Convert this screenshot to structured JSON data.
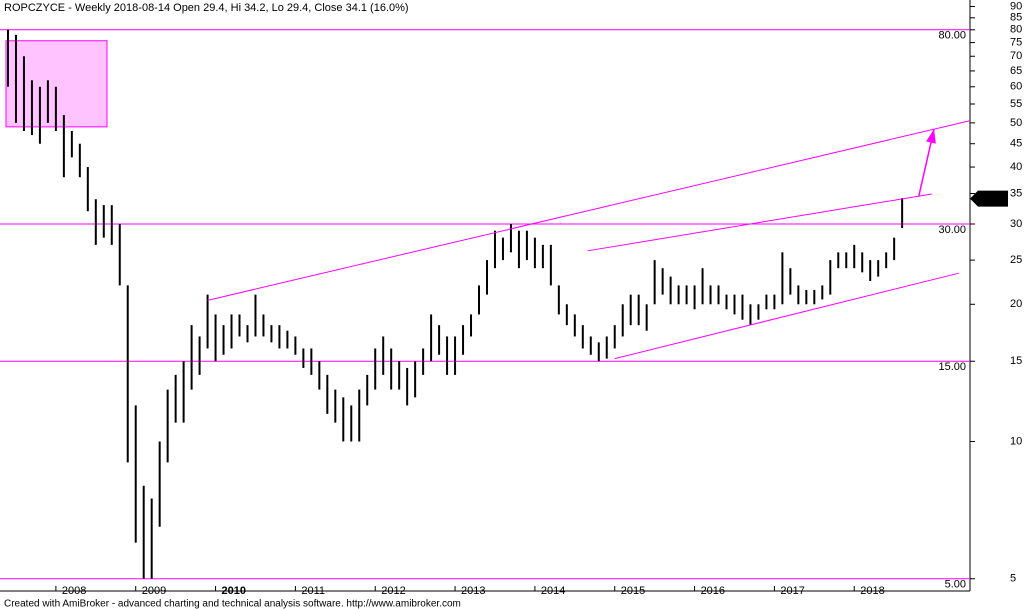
{
  "chart_data": {
    "type": "ohlc",
    "title": "ROPCZYCE - Weekly 2018-08-14 Open 29.4, Hi 34.2, Lo 29.4, Close 34.1 (16.0%)",
    "footer": "Created with AmiBroker - advanced charting and technical analysis software. http://www.amibroker.com",
    "log_scale": true,
    "color": "#000000",
    "line_color": "#ff00ff",
    "xlim": [
      2007.3,
      2019.45
    ],
    "ylim": [
      4.7,
      93
    ],
    "xticks": [
      2008,
      2009,
      2010,
      2011,
      2012,
      2013,
      2014,
      2015,
      2016,
      2017,
      2018
    ],
    "yticks": [
      5,
      10,
      15,
      20,
      25,
      30,
      35,
      40,
      45,
      50,
      55,
      60,
      65,
      70,
      75,
      80,
      85,
      90
    ],
    "last_price": 34.1,
    "levels": [
      {
        "value": 80,
        "label": "80.00"
      },
      {
        "value": 30,
        "label": "30.00"
      },
      {
        "value": 15,
        "label": "15.00"
      },
      {
        "value": 5,
        "label": "5.00"
      }
    ],
    "trend_lines": [
      {
        "x": [
          2009.9,
          2019.44
        ],
        "y": [
          20.4,
          50.5
        ]
      },
      {
        "x": [
          2014.66,
          2018.97
        ],
        "y": [
          26.2,
          34.9
        ]
      },
      {
        "x": [
          2015.0,
          2019.31
        ],
        "y": [
          15.2,
          23.4
        ]
      }
    ],
    "arrow": {
      "x": [
        2018.81,
        2019.0
      ],
      "y": [
        34.6,
        48.5
      ]
    },
    "box": {
      "x": [
        2007.375,
        2008.64
      ],
      "y": [
        49,
        75.7
      ]
    },
    "x": [
      2007.4,
      2007.5,
      2007.6,
      2007.7,
      2007.8,
      2007.9,
      2008.0,
      2008.1,
      2008.2,
      2008.3,
      2008.4,
      2008.5,
      2008.6,
      2008.7,
      2008.8,
      2008.9,
      2009.0,
      2009.1,
      2009.2,
      2009.3,
      2009.4,
      2009.5,
      2009.6,
      2009.7,
      2009.8,
      2009.9,
      2010.0,
      2010.1,
      2010.2,
      2010.3,
      2010.4,
      2010.5,
      2010.6,
      2010.7,
      2010.8,
      2010.9,
      2011.0,
      2011.1,
      2011.2,
      2011.3,
      2011.4,
      2011.5,
      2011.6,
      2011.7,
      2011.8,
      2011.9,
      2012.0,
      2012.1,
      2012.2,
      2012.3,
      2012.4,
      2012.5,
      2012.6,
      2012.7,
      2012.8,
      2012.9,
      2013.0,
      2013.1,
      2013.2,
      2013.3,
      2013.4,
      2013.5,
      2013.6,
      2013.7,
      2013.8,
      2013.9,
      2014.0,
      2014.1,
      2014.2,
      2014.3,
      2014.4,
      2014.5,
      2014.6,
      2014.7,
      2014.8,
      2014.9,
      2015.0,
      2015.1,
      2015.2,
      2015.3,
      2015.4,
      2015.5,
      2015.6,
      2015.7,
      2015.8,
      2015.9,
      2016.0,
      2016.1,
      2016.2,
      2016.3,
      2016.4,
      2016.5,
      2016.6,
      2016.7,
      2016.8,
      2016.9,
      2017.0,
      2017.1,
      2017.2,
      2017.3,
      2017.4,
      2017.5,
      2017.6,
      2017.7,
      2017.8,
      2017.9,
      2018.0,
      2018.1,
      2018.2,
      2018.3,
      2018.4,
      2018.5,
      2018.6
    ],
    "high": [
      80,
      78,
      70,
      62,
      60,
      62,
      60,
      52,
      48,
      45,
      40,
      34,
      33,
      33,
      30,
      22,
      12,
      8,
      7.5,
      10,
      13,
      14,
      15,
      18,
      17,
      21,
      19,
      18,
      19,
      19,
      18,
      21,
      19,
      18,
      18,
      17.5,
      17,
      16,
      16,
      15,
      14,
      13,
      12.5,
      12,
      13,
      14,
      16,
      17,
      16,
      15,
      14.5,
      15,
      16,
      19,
      18,
      17,
      17,
      18,
      19,
      22,
      25,
      29,
      28,
      30,
      29,
      29,
      28,
      27,
      27,
      22,
      20,
      19,
      18,
      17,
      16.5,
      17,
      18,
      20,
      21,
      21,
      20,
      25,
      24,
      23,
      22,
      22,
      22,
      24,
      22,
      22,
      21,
      21,
      21,
      20,
      20,
      21,
      21,
      26,
      24,
      22,
      21.5,
      21.5,
      22,
      25,
      26,
      26,
      27,
      26,
      25,
      25,
      26,
      28,
      34.2
    ],
    "low": [
      60,
      50,
      48,
      47,
      45,
      50,
      48,
      38,
      42,
      38,
      32,
      27,
      28,
      27,
      22,
      9,
      6,
      5,
      5,
      6.5,
      9,
      11,
      11,
      13,
      14,
      16,
      15,
      15.5,
      16,
      17,
      16.5,
      17,
      17,
      16.5,
      16,
      16,
      15.5,
      14.5,
      14,
      13,
      11.5,
      11,
      10,
      10,
      10,
      12,
      13,
      14,
      13,
      13,
      12,
      12.5,
      14,
      15,
      15.5,
      14,
      14,
      15.5,
      17,
      19,
      21,
      24,
      25,
      26,
      24,
      25,
      24,
      24,
      22,
      19,
      18,
      17,
      16,
      15.5,
      15,
      15.2,
      16,
      17,
      18,
      18,
      17.5,
      20,
      21,
      20,
      20,
      20,
      19.5,
      20,
      20,
      20,
      19.5,
      19,
      18.5,
      18,
      18.5,
      19.5,
      19.5,
      20,
      21,
      20,
      20,
      20,
      20.5,
      21,
      24,
      24,
      24,
      23.5,
      22.5,
      23,
      24,
      25,
      29.4
    ]
  }
}
